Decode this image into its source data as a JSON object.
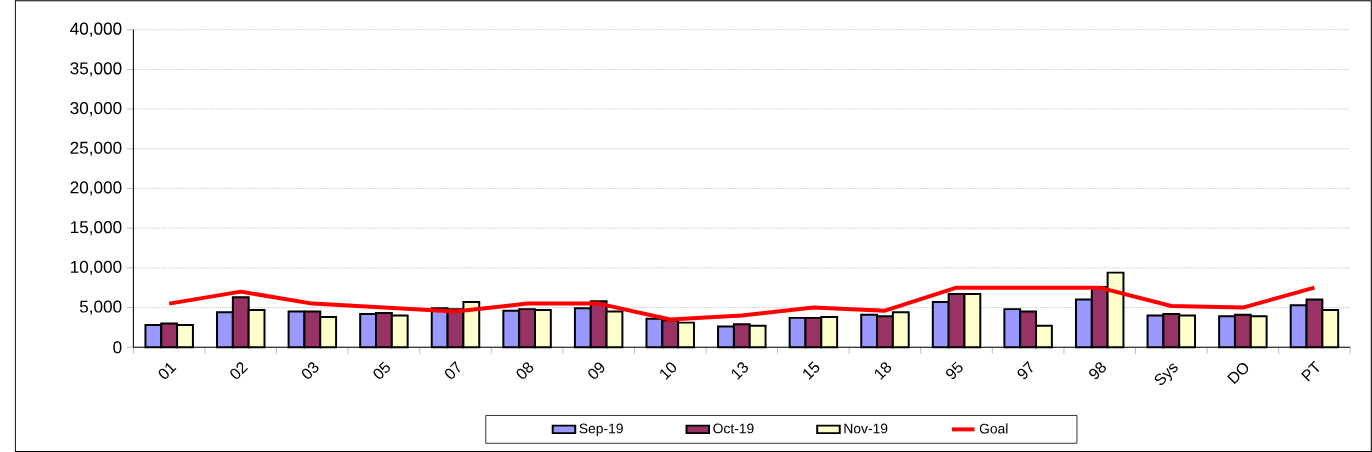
{
  "chart_data": {
    "type": "bar",
    "categories": [
      "01",
      "02",
      "03",
      "05",
      "07",
      "08",
      "09",
      "10",
      "13",
      "15",
      "18",
      "95",
      "97",
      "98",
      "Sys",
      "DO",
      "PT"
    ],
    "series": [
      {
        "name": "Sep-19",
        "color": "#9999ff",
        "values": [
          2800,
          4400,
          4500,
          4200,
          4900,
          4600,
          4900,
          3600,
          2600,
          3700,
          4100,
          5700,
          4800,
          6000,
          4000,
          3900,
          5300
        ]
      },
      {
        "name": "Oct-19",
        "color": "#993366",
        "values": [
          3000,
          6300,
          4500,
          4300,
          4800,
          4800,
          5800,
          3400,
          2900,
          3700,
          3900,
          6700,
          4500,
          7600,
          4200,
          4100,
          6000
        ]
      },
      {
        "name": "Nov-19",
        "color": "#ffffcc",
        "values": [
          2800,
          4700,
          3800,
          4000,
          5700,
          4700,
          4500,
          3100,
          2700,
          3800,
          4400,
          6700,
          2700,
          9400,
          4000,
          3900,
          4700
        ]
      },
      {
        "name": "Goal",
        "type": "line",
        "color": "#ff0000",
        "values": [
          5500,
          7000,
          5500,
          5000,
          4500,
          5500,
          5500,
          3500,
          4000,
          5000,
          4600,
          7500,
          7500,
          7500,
          5200,
          5000,
          7500
        ]
      }
    ],
    "ylim": [
      0,
      40000
    ],
    "yticks": [
      {
        "value": 0,
        "label": "0"
      },
      {
        "value": 5000,
        "label": "5,000"
      },
      {
        "value": 10000,
        "label": "10,000"
      },
      {
        "value": 15000,
        "label": "15,000"
      },
      {
        "value": 20000,
        "label": "20,000"
      },
      {
        "value": 25000,
        "label": "25,000"
      },
      {
        "value": 30000,
        "label": "30,000"
      },
      {
        "value": 35000,
        "label": "35,000"
      },
      {
        "value": 40000,
        "label": "40,000"
      }
    ],
    "grid": "y",
    "legend": "bottom"
  }
}
